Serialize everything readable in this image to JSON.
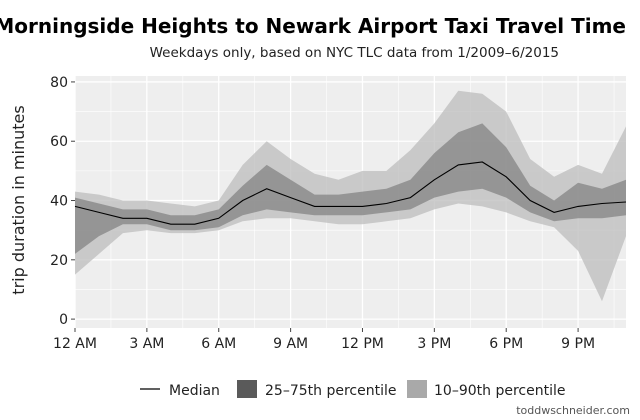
{
  "chart_data": {
    "type": "area",
    "title": "Morningside Heights to Newark Airport Taxi Travel Time",
    "subtitle": "Weekdays only, based on NYC TLC data from 1/2009–6/2015",
    "xlabel": "",
    "ylabel": "trip duration in minutes",
    "x_tick_labels": [
      "12 AM",
      "3 AM",
      "6 AM",
      "9 AM",
      "12 PM",
      "3 PM",
      "6 PM",
      "9 PM"
    ],
    "x_tick_hours": [
      0,
      3,
      6,
      9,
      12,
      15,
      18,
      21
    ],
    "y_ticks": [
      0,
      20,
      40,
      60,
      80
    ],
    "xlim": [
      0,
      23
    ],
    "ylim": [
      -3,
      82
    ],
    "grid": true,
    "legend_position": "bottom",
    "x": [
      0,
      1,
      2,
      3,
      4,
      5,
      6,
      7,
      8,
      9,
      10,
      11,
      12,
      13,
      14,
      15,
      16,
      17,
      18,
      19,
      20,
      21,
      22,
      23
    ],
    "series": [
      {
        "name": "Median",
        "kind": "line",
        "values": [
          38,
          36,
          34,
          34,
          32,
          32,
          34,
          40,
          44,
          41,
          38,
          38,
          38,
          39,
          41,
          47,
          52,
          53,
          48,
          40,
          36,
          38,
          39,
          39.5
        ]
      },
      {
        "name": "25–75th percentile",
        "kind": "band",
        "low": [
          22,
          28,
          32,
          32,
          30,
          30,
          31,
          35,
          37,
          36,
          35,
          35,
          35,
          36,
          37,
          41,
          43,
          44,
          41,
          36,
          33,
          34,
          34,
          35
        ],
        "high": [
          41,
          39,
          37,
          37,
          35,
          35,
          37,
          45,
          52,
          47,
          42,
          42,
          43,
          44,
          47,
          56,
          63,
          66,
          58,
          45,
          40,
          46,
          44,
          47
        ]
      },
      {
        "name": "10–90th percentile",
        "kind": "band",
        "low": [
          15,
          22,
          29,
          30,
          29,
          29,
          30,
          33,
          34,
          34,
          33,
          32,
          32,
          33,
          34,
          37,
          39,
          38,
          36,
          33,
          31,
          23,
          6,
          28
        ],
        "high": [
          43,
          42,
          40,
          40,
          39,
          38,
          40,
          52,
          60,
          54,
          49,
          47,
          50,
          50,
          57,
          66,
          77,
          76,
          70,
          54,
          48,
          52,
          49,
          65
        ]
      }
    ],
    "colors": {
      "background": "#ffffff",
      "panel": "#eeeeee",
      "grid": "#ffffff",
      "band_outer": "#bcbcbc",
      "band_inner": "#6a6a6a",
      "median": "#000000",
      "legend_outer": "#a9a9a9",
      "legend_inner": "#5a5a5a"
    }
  },
  "credit": "toddwschneider.com"
}
